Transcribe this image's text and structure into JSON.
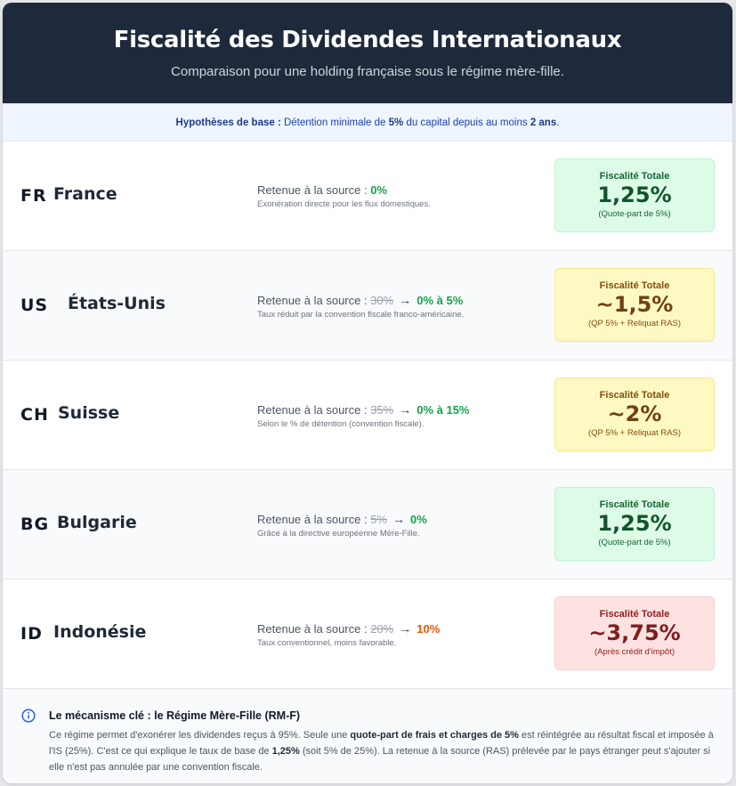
{
  "header": {
    "title": "Fiscalité des Dividendes Internationaux",
    "subtitle": "Comparaison pour une holding française sous le régime mère-fille."
  },
  "hypotheses": {
    "label": "Hypothèses de base :",
    "text1": "Détention minimale de",
    "pct": "5%",
    "text2": "du capital depuis au moins",
    "duration": "2 ans",
    "end": "."
  },
  "retention_label": "Retenue à la source :",
  "total_label": "Fiscalité Totale",
  "countries": [
    {
      "code": "FR",
      "name": "France",
      "old_rate": "",
      "new_rate": "0%",
      "rate_color": "green",
      "note": "Exonération directe pour les flux domestiques.",
      "total": "1,25%",
      "total_note": "(Quote-part de 5%)",
      "box_color": "green"
    },
    {
      "code": "US",
      "name": "États-Unis",
      "old_rate": "30%",
      "new_rate": "0% à 5%",
      "rate_color": "green",
      "note": "Taux réduit par la convention fiscale franco-américaine.",
      "total": "~1,5%",
      "total_note": "(QP 5% + Reliquat RAS)",
      "box_color": "yellow"
    },
    {
      "code": "CH",
      "name": "Suisse",
      "old_rate": "35%",
      "new_rate": "0% à 15%",
      "rate_color": "green",
      "note": "Selon le % de détention (convention fiscale).",
      "total": "~2%",
      "total_note": "(QP 5% + Reliquat RAS)",
      "box_color": "yellow"
    },
    {
      "code": "BG",
      "name": "Bulgarie",
      "old_rate": "5%",
      "new_rate": "0%",
      "rate_color": "green",
      "note": "Grâce à la directive européenne Mère-Fille.",
      "total": "1,25%",
      "total_note": "(Quote-part de 5%)",
      "box_color": "green"
    },
    {
      "code": "ID",
      "name": "Indonésie",
      "old_rate": "20%",
      "new_rate": "10%",
      "rate_color": "orange",
      "note": "Taux conventionnel, moins favorable.",
      "total": "~3,75%",
      "total_note": "(Après crédit d'impôt)",
      "box_color": "red"
    }
  ],
  "footer": {
    "icon": "info-icon",
    "title": "Le mécanisme clé : le Régime Mère-Fille (RM-F)",
    "p1": "Ce régime permet d'exonérer les dividendes reçus à 95%. Seule une ",
    "b1": "quote-part de frais et charges de 5%",
    "p2": " est réintégrée au résultat fiscal et imposée à l'IS (25%). C'est ce qui explique le taux de base de ",
    "b2": "1,25%",
    "p3": " (soit 5% de 25%). La retenue à la source (RAS) prélevée par le pays étranger peut s'ajouter si elle n'est pas annulée par une convention fiscale."
  }
}
